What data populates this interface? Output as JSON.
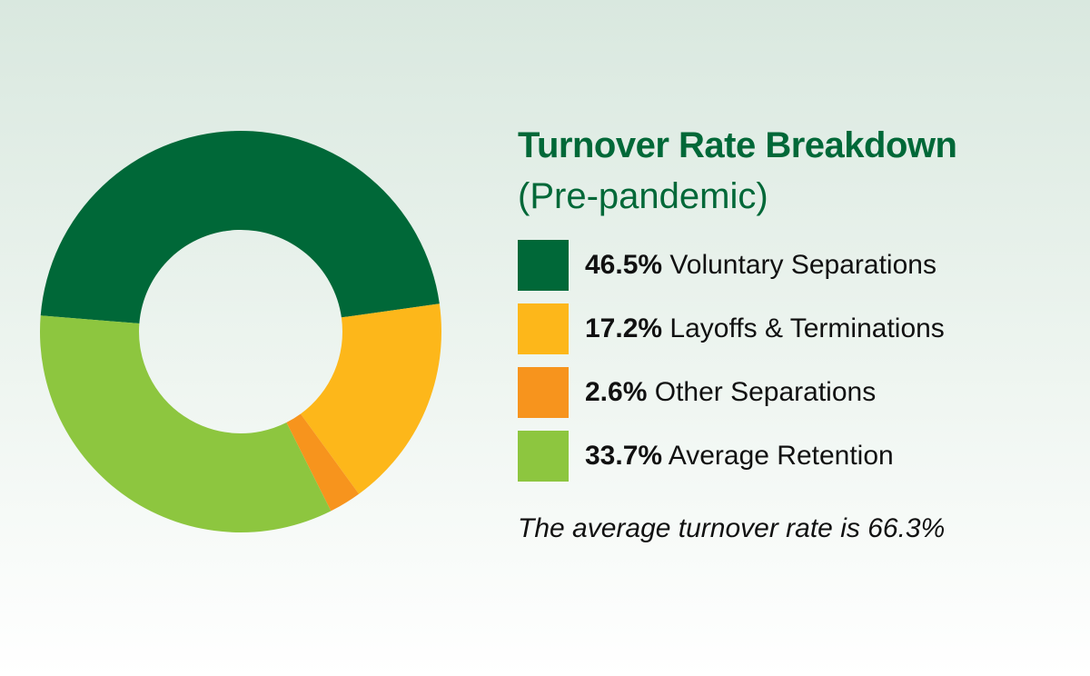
{
  "chart_data": {
    "type": "pie",
    "title": "Turnover Rate Breakdown",
    "subtitle": "(Pre-pandemic)",
    "donut": true,
    "slices": [
      {
        "label": "Voluntary Separations",
        "value": 46.5,
        "display": "46.5%",
        "color": "#006838"
      },
      {
        "label": "Layoffs & Terminations",
        "value": 17.2,
        "display": "17.2%",
        "color": "#FDB71A"
      },
      {
        "label": "Other Separations",
        "value": 2.6,
        "display": "2.6%",
        "color": "#F7941D"
      },
      {
        "label": "Average Retention",
        "value": 33.7,
        "display": "33.7%",
        "color": "#8DC63F"
      }
    ],
    "legend_position": "right",
    "note": "The average turnover rate is 66.3%"
  }
}
